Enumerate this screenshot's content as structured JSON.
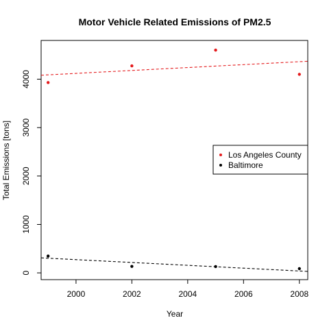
{
  "chart_data": {
    "type": "scatter",
    "title": "Motor Vehicle Related Emissions of PM2.5",
    "xlabel": "Year",
    "ylabel": "Total Emissions [tons]",
    "xlim": [
      1998.75,
      2008.3
    ],
    "ylim": [
      -140,
      4800
    ],
    "xticks": [
      2000,
      2002,
      2004,
      2006,
      2008
    ],
    "yticks": [
      0,
      1000,
      2000,
      3000,
      4000
    ],
    "grid": false,
    "legend_position": "right",
    "series": [
      {
        "name": "Los Angeles County",
        "color": "#e41a1c",
        "x": [
          1999,
          2002,
          2005,
          2008
        ],
        "y": [
          3930,
          4275,
          4600,
          4100
        ],
        "trend": {
          "x": [
            1998.75,
            2008.3
          ],
          "y": [
            4082,
            4370
          ]
        }
      },
      {
        "name": "Baltimore",
        "color": "#000000",
        "x": [
          1999,
          2002,
          2005,
          2008
        ],
        "y": [
          347,
          134,
          130,
          88
        ],
        "trend": {
          "x": [
            1998.75,
            2008.3
          ],
          "y": [
            310,
            30
          ]
        }
      }
    ]
  }
}
